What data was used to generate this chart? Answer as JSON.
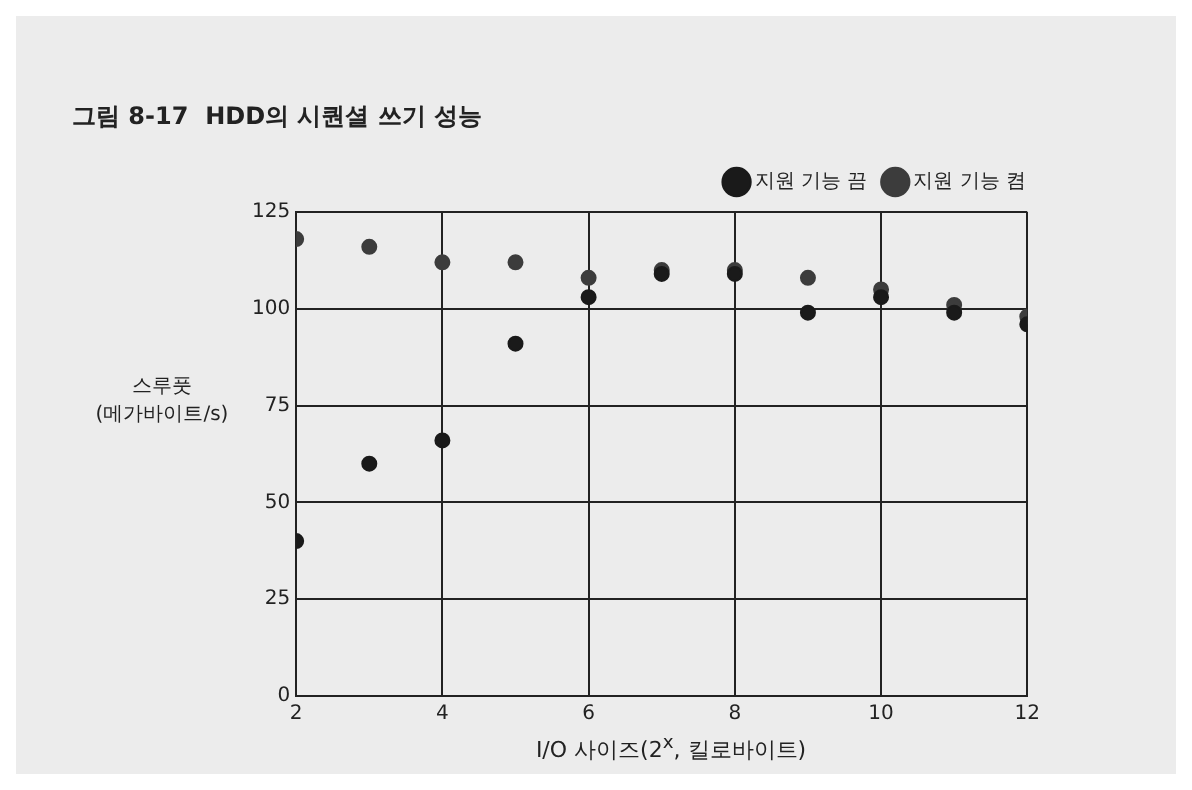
{
  "chart_data": {
    "type": "scatter",
    "title": "그림 8-17  HDD의 시퀀셜 쓰기 성능",
    "xlabel": "I/O 사이즈(2$^{x}$, 킬로바이트)",
    "ylabel": "스루풋\n(메가바이트/s)",
    "x": [
      2,
      3,
      4,
      5,
      6,
      7,
      8,
      9,
      10,
      11,
      12
    ],
    "series": [
      {
        "name": "지원 기능 끔",
        "color": "#1a1a1a",
        "values": [
          40,
          60,
          66,
          91,
          103,
          109,
          109,
          99,
          103,
          99,
          96
        ]
      },
      {
        "name": "지원 기능 켬",
        "color": "#3c3c3c",
        "values": [
          118,
          116,
          112,
          112,
          108,
          110,
          110,
          108,
          105,
          101,
          98
        ]
      }
    ],
    "xlim": [
      2,
      12
    ],
    "xticks": [
      2,
      4,
      6,
      8,
      10,
      12
    ],
    "ylim": [
      0,
      125
    ],
    "yticks": [
      0,
      25,
      50,
      75,
      100,
      125
    ],
    "grid": true,
    "legend": "top right",
    "marker": "circle"
  }
}
